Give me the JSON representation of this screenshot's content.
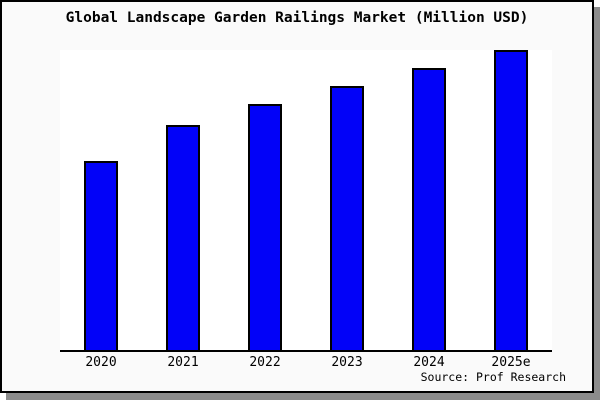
{
  "window": {
    "background": "#fafafa",
    "border_color": "#000000",
    "shadow_color": "#8c8c8c"
  },
  "chart_data": {
    "type": "bar",
    "title": "Global Landscape Garden Railings Market (Million USD)",
    "categories": [
      "2020",
      "2021",
      "2022",
      "2023",
      "2024",
      "2025e"
    ],
    "values": [
      63,
      75,
      82,
      88,
      94,
      100
    ],
    "values_note": "No y-axis scale shown; values are relative bar heights with 2025e = 100 (bar reaches plot top)",
    "ylim": [
      0,
      100
    ],
    "xlabel": "",
    "ylabel": "",
    "y_axis_visible": false,
    "grid": false,
    "legend": "none",
    "bar_color": "#0202f8",
    "bar_border_color": "#000000",
    "plot_background": "#ffffff",
    "source_label": "Source: Prof Research"
  }
}
